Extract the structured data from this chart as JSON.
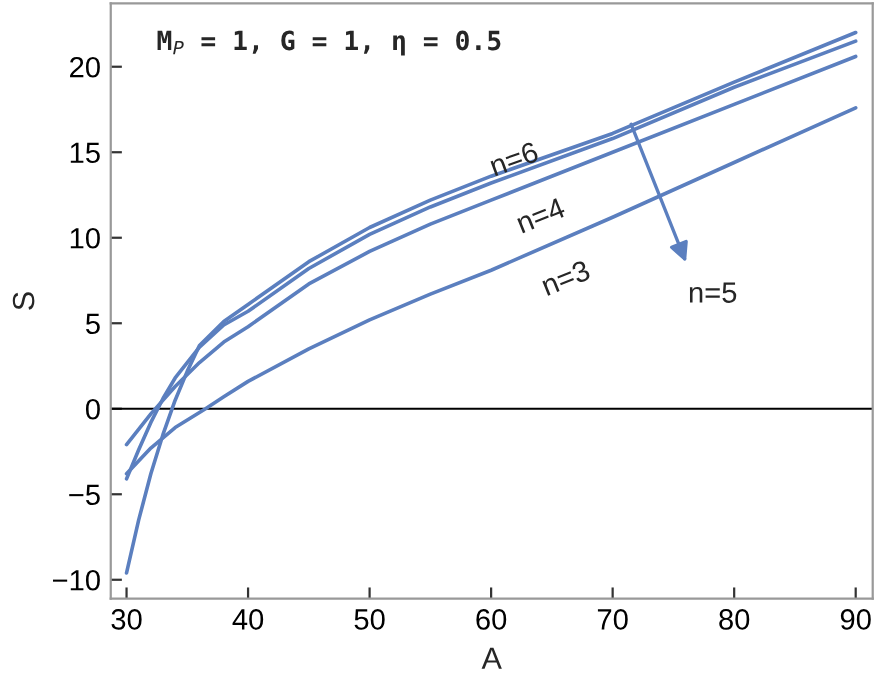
{
  "chart_data": {
    "type": "line",
    "xlabel": "A",
    "ylabel": "S",
    "xlim": [
      28.7,
      91.4
    ],
    "ylim": [
      -11.1,
      23.7
    ],
    "xticks": [
      30,
      40,
      50,
      60,
      70,
      80,
      90
    ],
    "yticks": [
      -10,
      -5,
      0,
      5,
      10,
      15,
      20
    ],
    "grid": false,
    "legend": false,
    "marker": "none",
    "line_style": "solid",
    "ref_lines": [
      {
        "axis": "y",
        "value": 0,
        "color": "#000000"
      }
    ],
    "annotations": [
      "M$_{P}$ = 1, G = 1, η = 0.5",
      "n=6",
      "n=4",
      "n=3",
      "n=5"
    ],
    "series": [
      {
        "color": "#5b7fbf",
        "x": [
          30,
          32,
          34,
          36.5,
          38,
          40,
          45,
          50,
          55,
          60,
          70,
          80,
          90
        ],
        "values": [
          -3.8,
          -2.3,
          -1.1,
          0,
          0.7,
          1.6,
          3.5,
          5.2,
          6.7,
          8.1,
          11.2,
          14.4,
          17.6
        ]
      },
      {
        "color": "#5b7fbf",
        "x": [
          30,
          32,
          34,
          36,
          38,
          40,
          45,
          50,
          55,
          60,
          70,
          80,
          90
        ],
        "values": [
          -2.1,
          -0.3,
          1.3,
          2.7,
          3.9,
          4.8,
          7.3,
          9.2,
          10.8,
          12.2,
          15.0,
          17.8,
          20.6
        ]
      },
      {
        "color": "#5b7fbf",
        "x": [
          30,
          31,
          32,
          33,
          34,
          36,
          38,
          40,
          45,
          50,
          55,
          60,
          70,
          80,
          90
        ],
        "values": [
          -4.1,
          -2.4,
          -0.8,
          0.6,
          1.8,
          3.6,
          4.9,
          5.7,
          8.2,
          10.2,
          11.8,
          13.2,
          15.8,
          18.8,
          21.5
        ]
      },
      {
        "color": "#5b7fbf",
        "x": [
          30,
          31,
          32,
          33,
          34,
          35,
          36,
          38,
          40,
          45,
          50,
          55,
          60,
          70,
          80,
          90
        ],
        "values": [
          -9.6,
          -6.5,
          -3.8,
          -1.5,
          0.5,
          2.2,
          3.7,
          5.1,
          6.1,
          8.6,
          10.6,
          12.2,
          13.6,
          16.1,
          19.1,
          22.0
        ]
      }
    ]
  }
}
